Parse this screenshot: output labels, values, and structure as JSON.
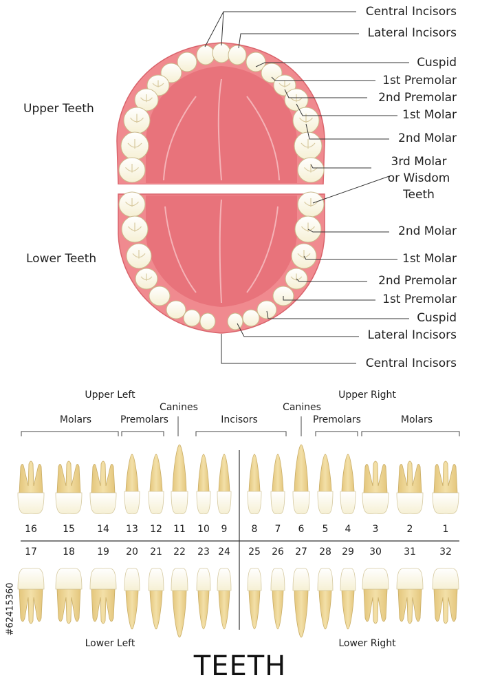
{
  "title": "TEETH",
  "stock_id": "#62415360",
  "colors": {
    "gum": "#e87a80",
    "palate": "#e8757d",
    "gum_edge": "#f4b9bc",
    "tooth": "#fdfbea",
    "tooth_edge": "#c8b98f",
    "root": "#ecd494",
    "leader": "#333333"
  },
  "arch": {
    "upper_heading": "Upper Teeth",
    "lower_heading": "Lower Teeth",
    "upper_labels": [
      "Central Incisors",
      "Lateral Incisors",
      "Cuspid",
      "1st Premolar",
      "2nd Premolar",
      "1st Molar",
      "2nd Molar"
    ],
    "wisdom_label": [
      "3rd Molar",
      "or Wisdom",
      "Teeth"
    ],
    "lower_labels": [
      "2nd Molar",
      "1st Molar",
      "2nd Premolar",
      "1st Premolar",
      "Cuspid",
      "Lateral Incisors",
      "Central Incisors"
    ]
  },
  "chart": {
    "upper_left": "Upper Left",
    "upper_right": "Upper Right",
    "lower_left": "Lower Left",
    "lower_right": "Lower Right",
    "groups": {
      "molars_l": "Molars",
      "premolars_l": "Premolars",
      "canines_l": "Canines",
      "incisors": "Incisors",
      "canines_r": "Canines",
      "premolars_r": "Premolars",
      "molars_r": "Molars"
    },
    "upper_numbers": [
      16,
      15,
      14,
      13,
      12,
      11,
      10,
      9,
      8,
      7,
      6,
      5,
      4,
      3,
      2,
      1
    ],
    "lower_numbers": [
      17,
      18,
      19,
      20,
      21,
      22,
      23,
      24,
      25,
      26,
      27,
      28,
      29,
      30,
      31,
      32
    ],
    "tooth_types": [
      "molar",
      "molar",
      "molar",
      "premolar",
      "premolar",
      "canine",
      "incisor",
      "incisor",
      "incisor",
      "incisor",
      "canine",
      "premolar",
      "premolar",
      "molar",
      "molar",
      "molar"
    ]
  }
}
